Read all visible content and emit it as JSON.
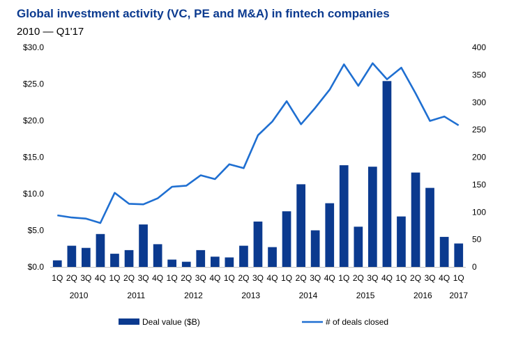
{
  "title": "Global investment activity (VC, PE and M&A) in fintech companies",
  "subtitle": "2010 — Q1'17",
  "colors": {
    "bar": "#0b3a8f",
    "line": "#1f6fd1",
    "title": "#0b3a8f"
  },
  "chart_data": {
    "type": "bar",
    "categories": [
      "1Q",
      "2Q",
      "3Q",
      "4Q",
      "1Q",
      "2Q",
      "3Q",
      "4Q",
      "1Q",
      "2Q",
      "3Q",
      "4Q",
      "1Q",
      "2Q",
      "3Q",
      "4Q",
      "1Q",
      "2Q",
      "3Q",
      "4Q",
      "1Q",
      "2Q",
      "3Q",
      "4Q",
      "1Q",
      "2Q",
      "3Q",
      "4Q",
      "1Q"
    ],
    "year_groups": [
      {
        "label": "2010",
        "start": 0,
        "end": 3
      },
      {
        "label": "2011",
        "start": 4,
        "end": 7
      },
      {
        "label": "2012",
        "start": 8,
        "end": 11
      },
      {
        "label": "2013",
        "start": 12,
        "end": 15
      },
      {
        "label": "2014",
        "start": 16,
        "end": 19
      },
      {
        "label": "2015",
        "start": 20,
        "end": 23
      },
      {
        "label": "2016",
        "start": 24,
        "end": 27
      },
      {
        "label": "2017",
        "start": 28,
        "end": 28
      }
    ],
    "series": [
      {
        "name": "Deal value ($B)",
        "type": "bar",
        "axis": "left",
        "values": [
          0.9,
          2.9,
          2.6,
          4.5,
          1.8,
          2.3,
          5.8,
          3.1,
          1.0,
          0.7,
          2.3,
          1.4,
          1.3,
          2.9,
          6.2,
          2.7,
          7.6,
          11.3,
          5.0,
          8.7,
          13.9,
          5.5,
          13.7,
          25.4,
          6.9,
          12.9,
          10.8,
          4.1,
          3.2
        ]
      },
      {
        "name": "# of deals closed",
        "type": "line",
        "axis": "right",
        "values": [
          94,
          90,
          88,
          80,
          135,
          115,
          114,
          125,
          146,
          148,
          167,
          160,
          187,
          180,
          240,
          265,
          302,
          260,
          290,
          323,
          369,
          330,
          371,
          342,
          363,
          316,
          266,
          274,
          258
        ]
      }
    ],
    "y_left": {
      "min": 0,
      "max": 30,
      "ticks": [
        "$0.0",
        "$5.0",
        "$10.0",
        "$15.0",
        "$20.0",
        "$25.0",
        "$30.0"
      ]
    },
    "y_right": {
      "min": 0,
      "max": 400,
      "ticks": [
        "0",
        "50",
        "100",
        "150",
        "200",
        "250",
        "300",
        "350",
        "400"
      ]
    },
    "grid": false,
    "legend": "bottom"
  }
}
